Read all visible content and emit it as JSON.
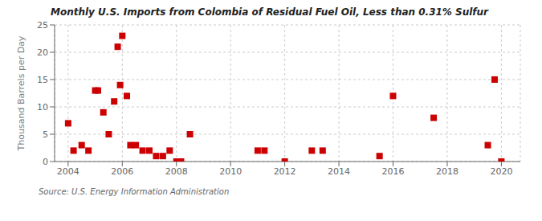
{
  "chart_data": {
    "type": "scatter",
    "title": "Monthly U.S. Imports from Colombia of Residual Fuel Oil, Less than 0.31% Sulfur",
    "ylabel": "Thousand Barrels per Day",
    "annotations": [
      "Source: U.S. Energy Information Administration"
    ],
    "x": [
      2004.0,
      2004.2,
      2004.5,
      2004.75,
      2005.0,
      2005.1,
      2005.3,
      2005.5,
      2005.7,
      2005.83,
      2005.92,
      2006.0,
      2006.17,
      2006.3,
      2006.5,
      2006.75,
      2007.0,
      2007.25,
      2007.5,
      2007.75,
      2008.0,
      2008.17,
      2008.5,
      2011.0,
      2011.25,
      2012.0,
      2013.0,
      2013.4,
      2015.5,
      2016.0,
      2017.5,
      2019.5,
      2019.75,
      2020.0
    ],
    "values": [
      7,
      2,
      3,
      2,
      13,
      13,
      9,
      5,
      11,
      21,
      14,
      23,
      12,
      3,
      3,
      2,
      2,
      1,
      1,
      2,
      0,
      0,
      5,
      2,
      2,
      0,
      2,
      2,
      1,
      12,
      8,
      3,
      15,
      0
    ],
    "color": "#cc0000",
    "marker": "square",
    "xlim": [
      2003.5,
      2020.7
    ],
    "xticks": [
      2004,
      2006,
      2008,
      2010,
      2012,
      2014,
      2016,
      2018,
      2020
    ],
    "ylim": [
      0,
      25
    ],
    "yticks": [
      0,
      5,
      10,
      15,
      20,
      25
    ],
    "grid": true
  }
}
